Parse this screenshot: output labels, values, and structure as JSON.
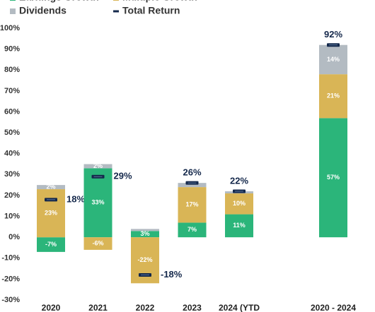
{
  "chart_data": {
    "type": "stacked-bar",
    "categories": [
      "2020",
      "2021",
      "2022",
      "2023",
      "2024 (YTD",
      "2020 - 2024"
    ],
    "series": [
      {
        "name": "Earnings Growth",
        "color": "#2bb57a",
        "values": [
          -7,
          33,
          3,
          7,
          11,
          57
        ],
        "value_labels": [
          "-7%",
          "33%",
          "3%",
          "7%",
          "11%",
          "57%"
        ]
      },
      {
        "name": "Multiple Growth",
        "color": "#d9b556",
        "values": [
          23,
          -6,
          -22,
          17,
          10,
          21
        ],
        "value_labels": [
          "23%",
          "-6%",
          "-22%",
          "17%",
          "10%",
          "21%"
        ]
      },
      {
        "name": "Dividends",
        "color": "#b3bbc2",
        "values": [
          2,
          2,
          1,
          2,
          1,
          14
        ],
        "value_labels": [
          "2%",
          "2%",
          null,
          null,
          null,
          "14%"
        ]
      },
      {
        "name": "Total Return",
        "color": "#14284b",
        "type": "marker",
        "values": [
          18,
          29,
          -18,
          26,
          22,
          92
        ],
        "value_labels": [
          "18%",
          "29%",
          "-18%",
          "26%",
          "22%",
          "92%"
        ]
      }
    ],
    "ylim": [
      -30,
      100
    ],
    "yticks": [
      {
        "value": -30,
        "label": "-30%"
      },
      {
        "value": -20,
        "label": "-20%"
      },
      {
        "value": -10,
        "label": "-10%"
      },
      {
        "value": 0,
        "label": "0%"
      },
      {
        "value": 10,
        "label": "10%"
      },
      {
        "value": 20,
        "label": "20%"
      },
      {
        "value": 30,
        "label": "30%"
      },
      {
        "value": 40,
        "label": "40%"
      },
      {
        "value": 50,
        "label": "50%"
      },
      {
        "value": 60,
        "label": "60%"
      },
      {
        "value": 70,
        "label": "70%"
      },
      {
        "value": 80,
        "label": "80%"
      },
      {
        "value": 90,
        "label": "90%"
      },
      {
        "value": 100,
        "label": "100%"
      }
    ],
    "grid": false
  }
}
